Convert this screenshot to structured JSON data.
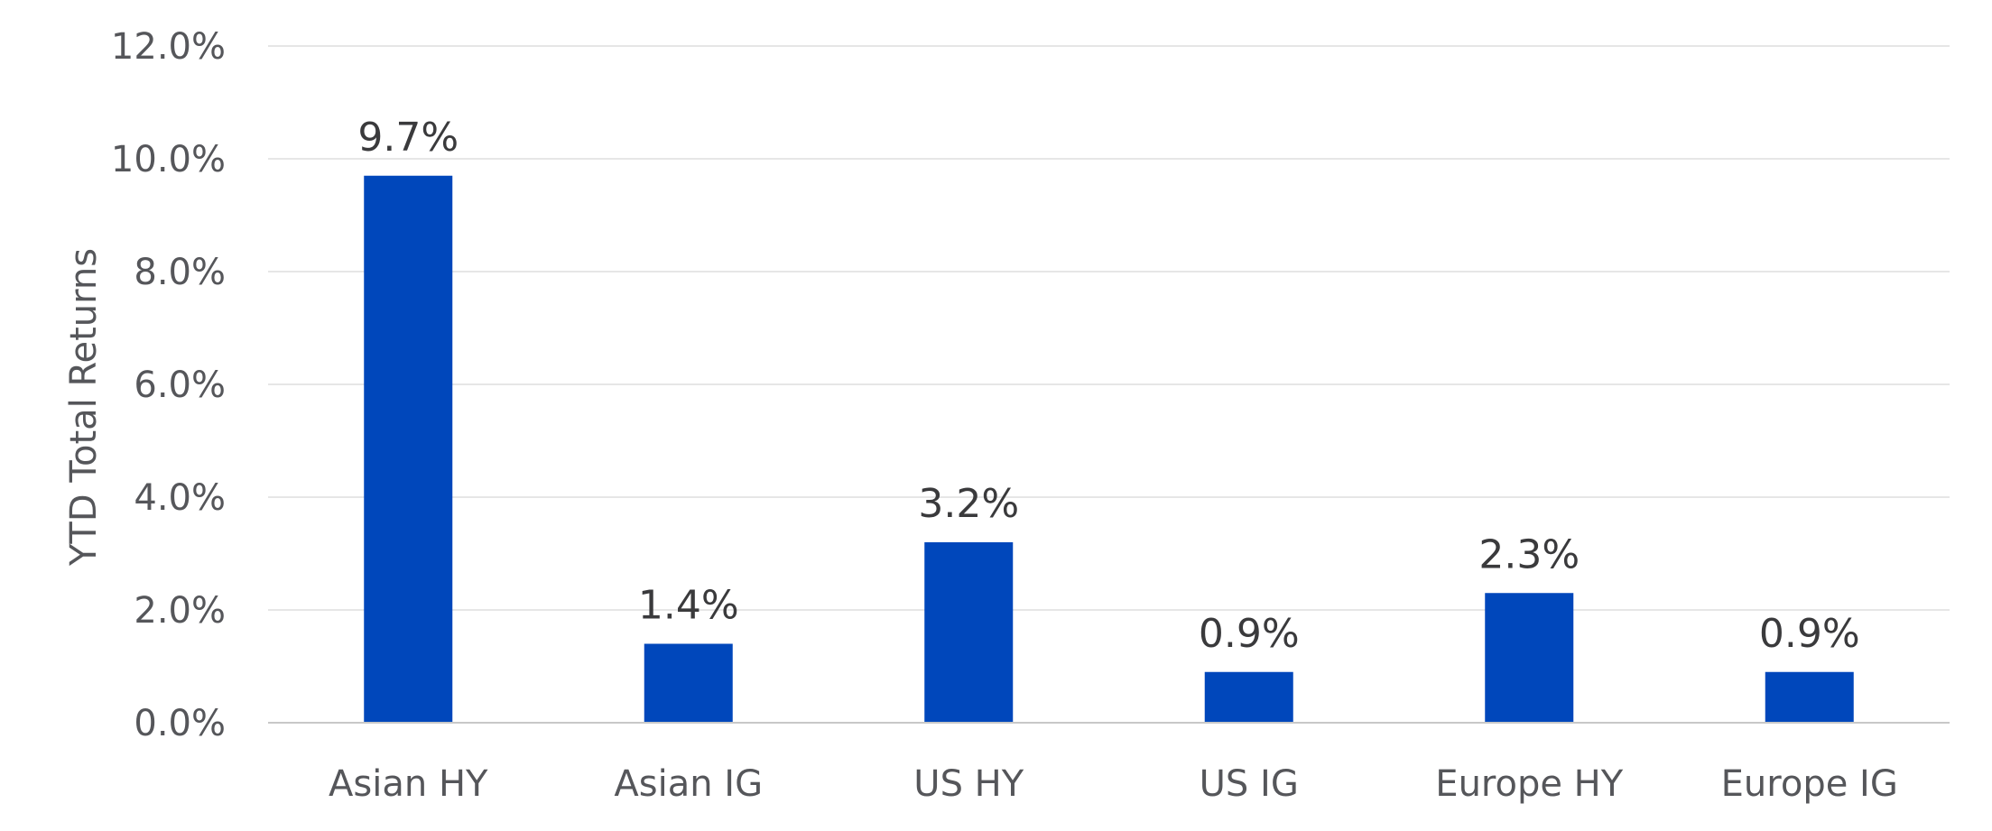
{
  "chart_data": {
    "type": "bar",
    "categories": [
      "Asian HY",
      "Asian IG",
      "US HY",
      "US IG",
      "Europe HY",
      "Europe IG"
    ],
    "values": [
      9.7,
      1.4,
      3.2,
      0.9,
      2.3,
      0.9
    ],
    "data_labels": [
      "9.7%",
      "1.4%",
      "3.2%",
      "0.9%",
      "2.3%",
      "0.9%"
    ],
    "ylabel": "YTD Total Returns",
    "ylim": [
      0,
      12
    ],
    "y_ticks": [
      0,
      2,
      4,
      6,
      8,
      10,
      12
    ],
    "y_tick_labels": [
      "0.0%",
      "2.0%",
      "4.0%",
      "6.0%",
      "8.0%",
      "10.0%",
      "12.0%"
    ],
    "grid": true,
    "legend": false,
    "colors": {
      "bar": "#0047BB",
      "grid": "#e6e6e6",
      "axis": "#c8c8c8"
    }
  }
}
